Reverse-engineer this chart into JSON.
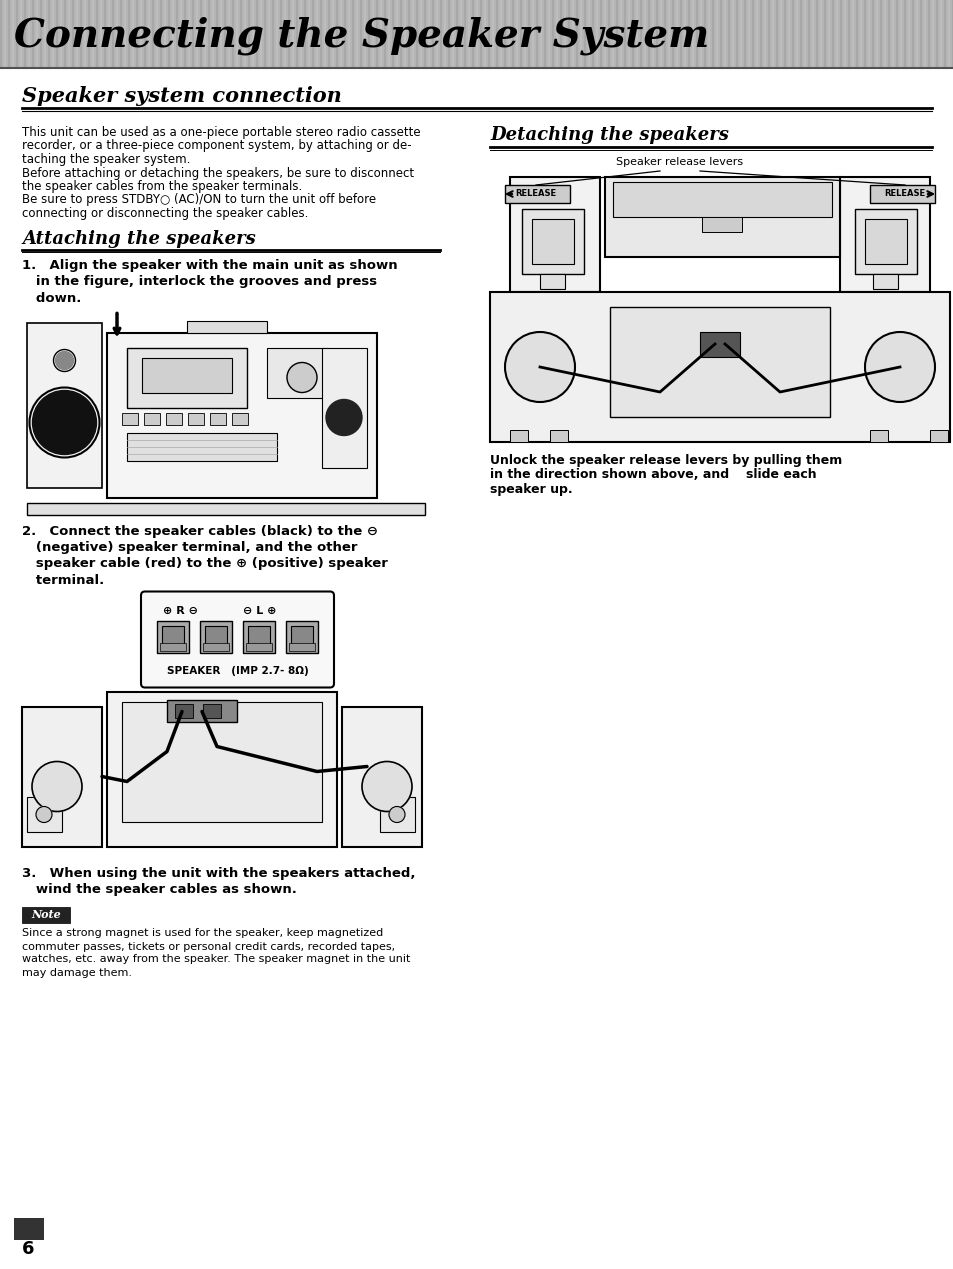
{
  "title": "Connecting the Speaker System",
  "subtitle": "Speaker system connection",
  "bg_color": "#ffffff",
  "page_number": "6",
  "intro_lines": [
    "This unit can be used as a one-piece portable stereo radio cassette",
    "recorder, or a three-piece component system, by attaching or de-",
    "taching the speaker system.",
    "Before attaching or detaching the speakers, be sure to disconnect",
    "the speaker cables from the speaker terminals.",
    "Be sure to press STDBY○ (AC)/ON to turn the unit off before",
    "connecting or disconnecting the speaker cables."
  ],
  "attaching_title": "Attaching the speakers",
  "step1_lines": [
    "1. Align the speaker with the main unit as shown",
    "   in the figure, interlock the grooves and press",
    "   down."
  ],
  "step2_lines": [
    "2. Connect the speaker cables (black) to the ⊖",
    "   (negative) speaker terminal, and the other",
    "   speaker cable (red) to the ⊕ (positive) speaker",
    "   terminal."
  ],
  "speaker_label": "SPEAKER   (IMP 2.7- 8Ω)",
  "step3_lines": [
    "3. When using the unit with the speakers attached,",
    "   wind the speaker cables as shown."
  ],
  "note_label": "Note",
  "note_lines": [
    "Since a strong magnet is used for the speaker, keep magnetized",
    "commuter passes, tickets or personal credit cards, recorded tapes,",
    "watches, etc. away from the speaker. The speaker magnet in the unit",
    "may damage them."
  ],
  "detaching_title": "Detaching the speakers",
  "speaker_release_label": "Speaker release levers",
  "detach_lines": [
    "Unlock the speaker release levers by pulling them",
    "in the direction shown above, and  slide each",
    "speaker up."
  ]
}
